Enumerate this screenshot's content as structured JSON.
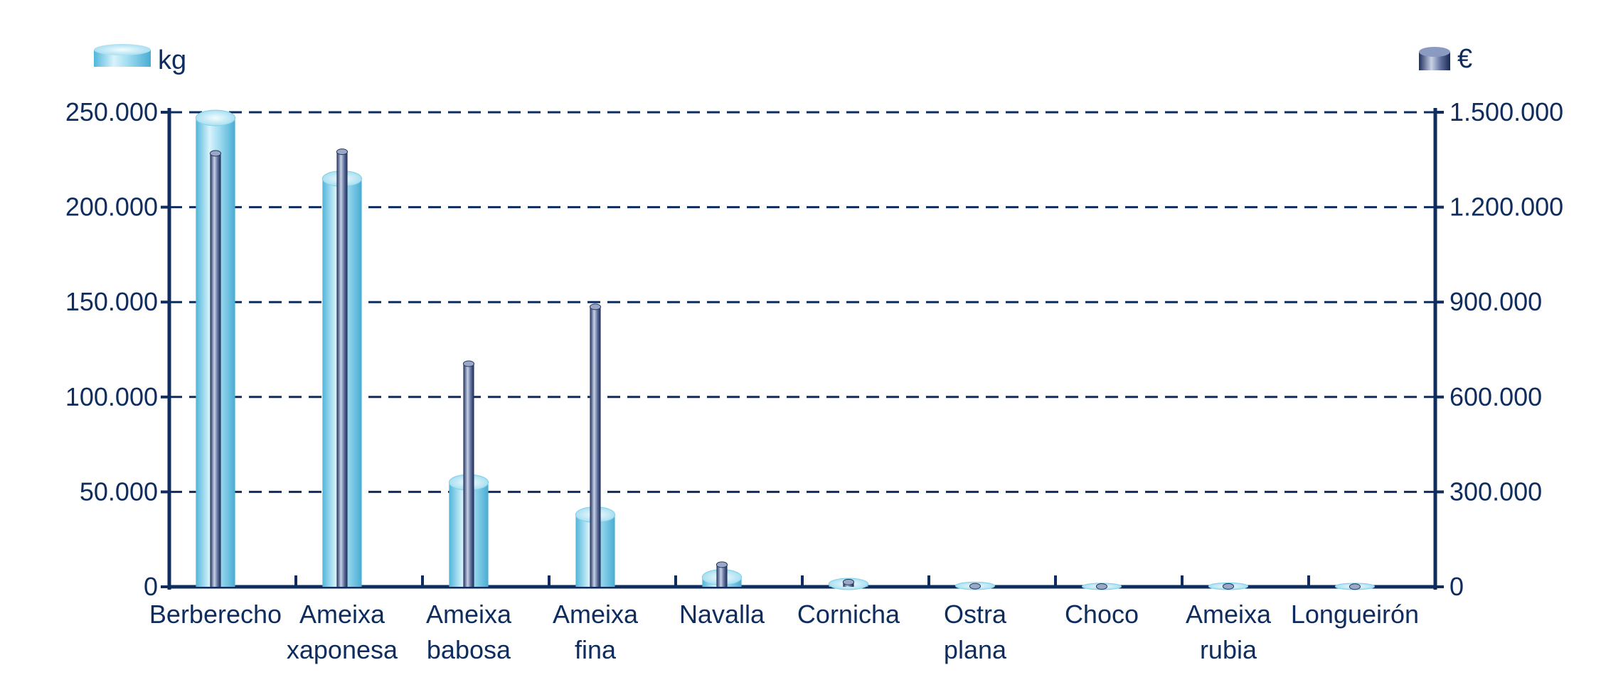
{
  "chart_data": {
    "type": "bar",
    "categories": [
      [
        "Berberecho"
      ],
      [
        "Ameixa",
        "xaponesa"
      ],
      [
        "Ameixa",
        "babosa"
      ],
      [
        "Ameixa",
        "fina"
      ],
      [
        "Navalla"
      ],
      [
        "Cornicha"
      ],
      [
        "Ostra",
        "plana"
      ],
      [
        "Choco"
      ],
      [
        "Ameixa",
        "rubia"
      ],
      [
        "Longueirón"
      ]
    ],
    "series": [
      {
        "name": "kg",
        "axis": "left",
        "color": "#6fcbe8",
        "values": [
          247000,
          215000,
          55000,
          38000,
          5000,
          1500,
          500,
          200,
          300,
          200
        ]
      },
      {
        "name": "€",
        "axis": "right",
        "color": "#33477a",
        "values": [
          1370000,
          1375000,
          705000,
          885000,
          70000,
          15000,
          2000,
          1000,
          1500,
          500
        ]
      }
    ],
    "left_axis": {
      "unit_label": "kg",
      "ylim": [
        0,
        250000
      ],
      "ticks": [
        {
          "value": 0,
          "label": "0"
        },
        {
          "value": 50000,
          "label": "50.000"
        },
        {
          "value": 100000,
          "label": "100.000"
        },
        {
          "value": 150000,
          "label": "150.000"
        },
        {
          "value": 200000,
          "label": "200.000"
        },
        {
          "value": 250000,
          "label": "250.000"
        }
      ]
    },
    "right_axis": {
      "unit_label": "€",
      "ylim": [
        0,
        1500000
      ],
      "ticks": [
        {
          "value": 0,
          "label": "0"
        },
        {
          "value": 300000,
          "label": "300.000"
        },
        {
          "value": 600000,
          "label": "600.000"
        },
        {
          "value": 900000,
          "label": "900.000"
        },
        {
          "value": 1200000,
          "label": "1.200.000"
        },
        {
          "value": 1500000,
          "label": "1.500.000"
        }
      ]
    },
    "grid": "horizontal-dashed",
    "legend": "top-left and top-right",
    "colors": {
      "axis": "#0e2d5e",
      "text": "#0e2d5e"
    }
  }
}
